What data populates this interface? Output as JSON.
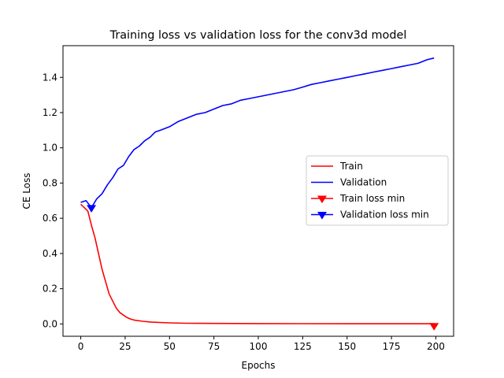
{
  "chart_data": {
    "type": "line",
    "title": "Training loss vs validation loss for the conv3d model",
    "xlabel": "Epochs",
    "ylabel": "CE Loss",
    "xlim": [
      -10,
      210
    ],
    "ylim": [
      -0.07,
      1.58
    ],
    "xticks": [
      "0",
      "25",
      "50",
      "75",
      "100",
      "125",
      "150",
      "175",
      "200"
    ],
    "yticks": [
      "0.0",
      "0.2",
      "0.4",
      "0.6",
      "0.8",
      "1.0",
      "1.2",
      "1.4"
    ],
    "grid": false,
    "legend_position": "center-right",
    "series": [
      {
        "name": "Train",
        "color": "#ff0000",
        "x": [
          0,
          2,
          4,
          6,
          8,
          10,
          12,
          14,
          16,
          18,
          20,
          22,
          24,
          26,
          28,
          30,
          35,
          40,
          50,
          60,
          75,
          100,
          125,
          150,
          175,
          199
        ],
        "values": [
          0.68,
          0.66,
          0.64,
          0.56,
          0.49,
          0.4,
          0.31,
          0.24,
          0.17,
          0.13,
          0.09,
          0.065,
          0.05,
          0.037,
          0.028,
          0.022,
          0.015,
          0.01,
          0.006,
          0.004,
          0.003,
          0.002,
          0.0015,
          0.001,
          0.001,
          0.001
        ]
      },
      {
        "name": "Validation",
        "color": "#0000ff",
        "x": [
          0,
          3,
          6,
          9,
          12,
          15,
          18,
          21,
          24,
          27,
          30,
          33,
          36,
          39,
          42,
          45,
          50,
          55,
          60,
          65,
          70,
          75,
          80,
          85,
          90,
          95,
          100,
          105,
          110,
          115,
          120,
          125,
          130,
          135,
          140,
          145,
          150,
          155,
          160,
          165,
          170,
          175,
          180,
          185,
          190,
          195,
          199
        ],
        "values": [
          0.69,
          0.7,
          0.66,
          0.71,
          0.74,
          0.79,
          0.83,
          0.88,
          0.9,
          0.95,
          0.99,
          1.01,
          1.04,
          1.06,
          1.09,
          1.1,
          1.12,
          1.15,
          1.17,
          1.19,
          1.2,
          1.22,
          1.24,
          1.25,
          1.27,
          1.28,
          1.29,
          1.3,
          1.31,
          1.32,
          1.33,
          1.345,
          1.36,
          1.37,
          1.38,
          1.39,
          1.4,
          1.41,
          1.42,
          1.43,
          1.44,
          1.45,
          1.46,
          1.47,
          1.48,
          1.5,
          1.51
        ]
      }
    ],
    "markers": [
      {
        "name": "Train loss min",
        "color": "#ff0000",
        "x": 199,
        "y": -0.015
      },
      {
        "name": "Validation loss min",
        "color": "#0000ff",
        "x": 6,
        "y": 0.655
      }
    ],
    "legend": [
      {
        "label": "Train",
        "kind": "line",
        "color": "#ff0000"
      },
      {
        "label": "Validation",
        "kind": "line",
        "color": "#0000ff"
      },
      {
        "label": "Train loss min",
        "kind": "marker",
        "color": "#ff0000"
      },
      {
        "label": "Validation loss min",
        "kind": "marker",
        "color": "#0000ff"
      }
    ]
  }
}
